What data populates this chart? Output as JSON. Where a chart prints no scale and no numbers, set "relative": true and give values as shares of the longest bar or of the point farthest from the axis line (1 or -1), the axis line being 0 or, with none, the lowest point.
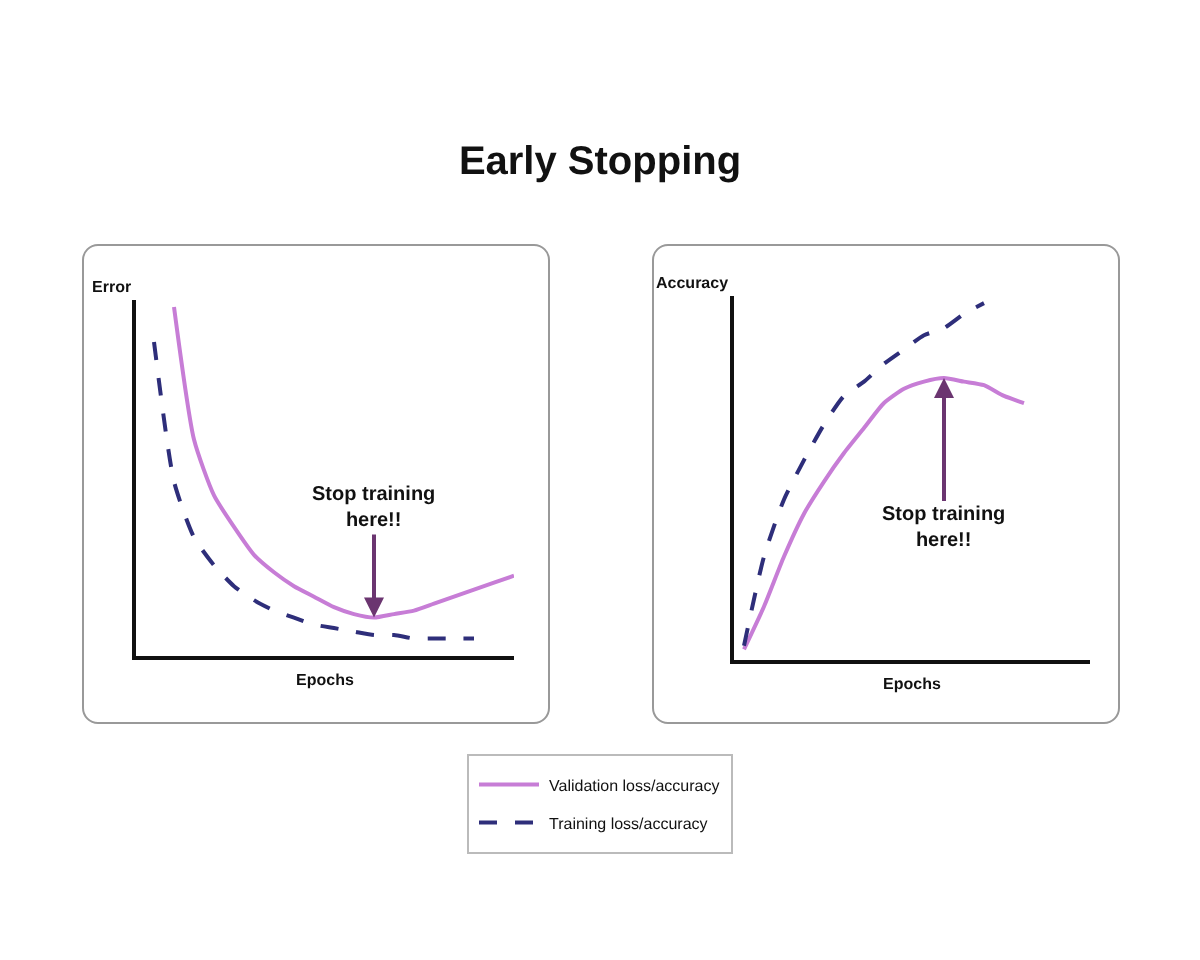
{
  "chart_data": [
    {
      "type": "line",
      "title": "Early Stopping",
      "xlabel": "Epochs",
      "ylabel": "Error",
      "relative": true,
      "tick_labels": false,
      "grid": false,
      "legend": "bottom",
      "marker": "none",
      "categories": [
        null,
        null,
        null,
        null,
        null,
        null,
        null,
        null,
        null,
        null,
        null,
        null,
        null,
        null,
        null,
        null,
        null,
        null,
        null
      ],
      "series": [
        {
          "name": "Validation loss/accuracy",
          "color": "#c77dd6",
          "line_style": "solid",
          "values": [
            null,
            1.0,
            0.62,
            0.46,
            0.37,
            0.29,
            0.24,
            0.2,
            0.17,
            0.14,
            0.12,
            0.11,
            0.12,
            0.13,
            0.15,
            0.17,
            0.19,
            0.21,
            0.23
          ]
        },
        {
          "name": "Training loss/accuracy",
          "color": "#2e2e7a",
          "line_style": "dashed",
          "values": [
            0.9,
            0.5,
            0.34,
            0.26,
            0.2,
            0.16,
            0.13,
            0.11,
            0.09,
            0.08,
            0.07,
            0.06,
            0.06,
            0.05,
            0.05,
            0.05,
            0.05,
            null,
            null
          ]
        }
      ],
      "annotations": [
        {
          "text": "Stop training\nhere!!",
          "y": 0.11
        }
      ]
    },
    {
      "type": "line",
      "xlabel": "Epochs",
      "ylabel": "Accuracy",
      "relative": true,
      "tick_labels": false,
      "grid": false,
      "legend": false,
      "marker": "none",
      "categories": [
        null,
        null,
        null,
        null,
        null,
        null,
        null,
        null,
        null,
        null,
        null,
        null,
        null,
        null,
        null
      ],
      "series": [
        {
          "color": "#c77dd6",
          "line_style": "solid",
          "values": [
            0.03,
            0.15,
            0.29,
            0.41,
            0.5,
            0.58,
            0.65,
            0.72,
            0.76,
            0.78,
            0.79,
            0.78,
            0.77,
            0.74,
            0.72
          ]
        },
        {
          "color": "#2e2e7a",
          "line_style": "dashed",
          "values": [
            0.04,
            0.29,
            0.45,
            0.56,
            0.66,
            0.74,
            0.78,
            0.83,
            0.87,
            0.91,
            0.93,
            0.97,
            1.0,
            null,
            null
          ]
        }
      ],
      "annotations": [
        {
          "text": "Stop training\nhere!!",
          "y": 0.79
        }
      ]
    }
  ]
}
